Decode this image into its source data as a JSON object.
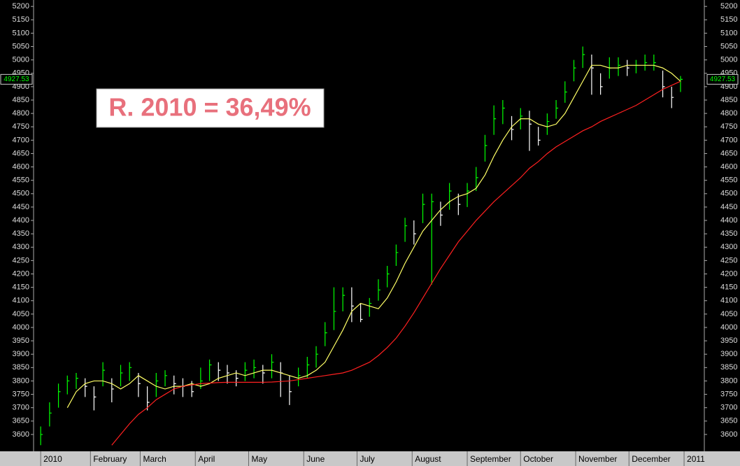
{
  "chart_data": {
    "type": "ohlc",
    "annotation": "R. 2010 = 36,49%",
    "up_color": "#00ff00",
    "down_color": "#ffffff",
    "xlim": [
      0,
      377
    ],
    "xticks": [
      {
        "value": 4,
        "label": "2010"
      },
      {
        "value": 32,
        "label": "February"
      },
      {
        "value": 60,
        "label": "March"
      },
      {
        "value": 91,
        "label": "April"
      },
      {
        "value": 121,
        "label": "May"
      },
      {
        "value": 152,
        "label": "June"
      },
      {
        "value": 182,
        "label": "July"
      },
      {
        "value": 213,
        "label": "August"
      },
      {
        "value": 244,
        "label": "September"
      },
      {
        "value": 274,
        "label": "October"
      },
      {
        "value": 305,
        "label": "November"
      },
      {
        "value": 335,
        "label": "December"
      },
      {
        "value": 366,
        "label": "2011"
      }
    ],
    "ylim": [
      3537,
      5224
    ],
    "yticks": [
      3600,
      3650,
      3700,
      3750,
      3800,
      3850,
      3900,
      3950,
      4000,
      4050,
      4100,
      4150,
      4200,
      4250,
      4300,
      4350,
      4400,
      4450,
      4500,
      4550,
      4600,
      4650,
      4700,
      4750,
      4800,
      4850,
      4900,
      4950,
      5000,
      5050,
      5100,
      5150,
      5200
    ],
    "bars": {
      "x": [
        4,
        9,
        14,
        19,
        24,
        29,
        34,
        39,
        44,
        49,
        54,
        59,
        64,
        69,
        74,
        79,
        84,
        89,
        94,
        99,
        104,
        109,
        114,
        119,
        124,
        129,
        134,
        139,
        144,
        149,
        154,
        159,
        164,
        169,
        174,
        179,
        184,
        189,
        194,
        199,
        204,
        209,
        214,
        219,
        224,
        229,
        234,
        239,
        244,
        249,
        254,
        259,
        264,
        269,
        274,
        279,
        284,
        289,
        294,
        299,
        304,
        309,
        314,
        319,
        324,
        329,
        334,
        339,
        344,
        349,
        354,
        359,
        364
      ],
      "high": [
        3630,
        3720,
        3790,
        3820,
        3830,
        3810,
        3780,
        3870,
        3810,
        3860,
        3870,
        3830,
        3780,
        3830,
        3840,
        3820,
        3810,
        3800,
        3850,
        3880,
        3870,
        3860,
        3840,
        3870,
        3880,
        3860,
        3900,
        3870,
        3820,
        3850,
        3890,
        3930,
        4020,
        4150,
        4150,
        4150,
        4090,
        4110,
        4180,
        4230,
        4310,
        4410,
        4400,
        4500,
        4500,
        4470,
        4540,
        4500,
        4540,
        4600,
        4720,
        4830,
        4850,
        4790,
        4820,
        4810,
        4750,
        4800,
        4850,
        4920,
        5000,
        5050,
        5020,
        4950,
        5010,
        5010,
        5000,
        5000,
        5020,
        5020,
        4960,
        4900,
        4940
      ],
      "low": [
        3560,
        3630,
        3700,
        3750,
        3770,
        3740,
        3690,
        3780,
        3720,
        3780,
        3800,
        3740,
        3690,
        3740,
        3780,
        3750,
        3740,
        3740,
        3770,
        3800,
        3800,
        3790,
        3780,
        3800,
        3810,
        3790,
        3810,
        3740,
        3710,
        3780,
        3810,
        3850,
        3930,
        3990,
        4060,
        4020,
        4020,
        4040,
        4100,
        4150,
        4230,
        4320,
        4310,
        4390,
        4160,
        4380,
        4440,
        4420,
        4450,
        4510,
        4620,
        4720,
        4760,
        4700,
        4740,
        4660,
        4680,
        4720,
        4780,
        4840,
        4920,
        4970,
        4870,
        4870,
        4930,
        4940,
        4940,
        4950,
        4960,
        4960,
        4860,
        4820,
        4880
      ],
      "close": [
        3600,
        3680,
        3760,
        3800,
        3810,
        3780,
        3740,
        3840,
        3770,
        3830,
        3850,
        3790,
        3720,
        3800,
        3820,
        3790,
        3780,
        3760,
        3800,
        3860,
        3840,
        3830,
        3810,
        3840,
        3850,
        3830,
        3870,
        3830,
        3760,
        3820,
        3860,
        3900,
        3980,
        4060,
        4120,
        4080,
        4030,
        4090,
        4140,
        4200,
        4280,
        4380,
        4350,
        4460,
        4470,
        4420,
        4510,
        4460,
        4510,
        4560,
        4680,
        4780,
        4820,
        4740,
        4790,
        4760,
        4700,
        4770,
        4820,
        4880,
        4970,
        5020,
        4970,
        4900,
        4970,
        4980,
        4970,
        4980,
        4990,
        4990,
        4900,
        4860,
        4927.53
      ]
    },
    "series": [
      {
        "color": "#ffff66",
        "values": [
          null,
          null,
          null,
          3700,
          3760,
          3790,
          3800,
          3800,
          3790,
          3770,
          3790,
          3820,
          3800,
          3780,
          3770,
          3780,
          3780,
          3790,
          3780,
          3790,
          3810,
          3820,
          3830,
          3820,
          3830,
          3840,
          3840,
          3830,
          3820,
          3810,
          3820,
          3840,
          3870,
          3930,
          3990,
          4060,
          4090,
          4080,
          4070,
          4110,
          4170,
          4240,
          4300,
          4360,
          4400,
          4440,
          4470,
          4490,
          4500,
          4520,
          4570,
          4640,
          4700,
          4750,
          4780,
          4780,
          4760,
          4750,
          4760,
          4800,
          4860,
          4920,
          4980,
          4980,
          4970,
          4970,
          4980,
          4980,
          4980,
          4980,
          4970,
          4950,
          4920
        ]
      },
      {
        "color": "#ff2020",
        "values": [
          null,
          null,
          null,
          null,
          null,
          null,
          null,
          null,
          3560,
          3600,
          3640,
          3675,
          3700,
          3730,
          3750,
          3770,
          3780,
          3785,
          3790,
          3792,
          3794,
          3795,
          3795,
          3795,
          3795,
          3795,
          3796,
          3798,
          3800,
          3805,
          3810,
          3815,
          3820,
          3825,
          3830,
          3840,
          3855,
          3870,
          3895,
          3925,
          3960,
          4005,
          4055,
          4110,
          4165,
          4220,
          4270,
          4320,
          4360,
          4400,
          4435,
          4470,
          4500,
          4530,
          4560,
          4595,
          4620,
          4650,
          4675,
          4695,
          4715,
          4735,
          4750,
          4770,
          4785,
          4800,
          4815,
          4830,
          4850,
          4870,
          4890,
          4905,
          4920
        ]
      }
    ]
  }
}
